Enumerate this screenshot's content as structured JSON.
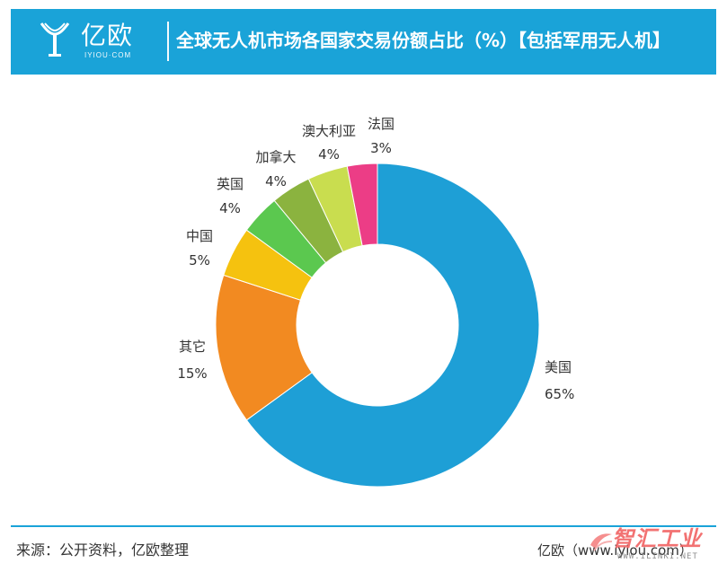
{
  "header": {
    "logo_text": "亿欧",
    "logo_sub": "IYIOU·COM",
    "title": "全球无人机市场各国家交易份额占比（%）【包括军用无人机】"
  },
  "colors": {
    "header_bg": "#1aa3d8",
    "footer_line": "#1aa3d8",
    "text": "#333333"
  },
  "chart_data": {
    "type": "pie",
    "donut": true,
    "title": "全球无人机市场各国家交易份额占比（%）【包括军用无人机】",
    "categories": [
      "美国",
      "其它",
      "中国",
      "英国",
      "加拿大",
      "澳大利亚",
      "法国"
    ],
    "values": [
      65,
      15,
      5,
      4,
      4,
      4,
      3
    ],
    "value_labels": [
      "65%",
      "15%",
      "5%",
      "4%",
      "4%",
      "4%",
      "3%"
    ],
    "colors": [
      "#1e9fd6",
      "#f28a21",
      "#f5c20f",
      "#5bc84f",
      "#8bb33f",
      "#c9dd4f",
      "#ec3d86"
    ],
    "start_angle_deg": 0,
    "direction": "clockwise",
    "legend": "none"
  },
  "footer": {
    "source": "来源：公开资料，亿欧整理",
    "site": "亿欧（www.iyiou.com）"
  },
  "watermark": {
    "text": "智汇工业",
    "url": "WWW.ILINKI.NET"
  }
}
